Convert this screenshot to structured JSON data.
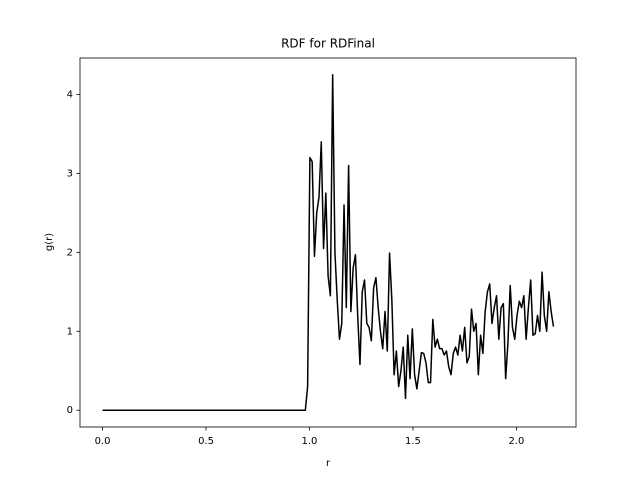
{
  "chart_data": {
    "type": "line",
    "title": "RDF for RDFinal",
    "x_label": "r",
    "y_label": "g(r)",
    "x": [
      0,
      0.98,
      0.991,
      1.002,
      1.013,
      1.024,
      1.035,
      1.046,
      1.057,
      1.068,
      1.079,
      1.09,
      1.101,
      1.112,
      1.123,
      1.134,
      1.145,
      1.156,
      1.167,
      1.178,
      1.189,
      1.2,
      1.211,
      1.222,
      1.233,
      1.244,
      1.255,
      1.266,
      1.277,
      1.288,
      1.299,
      1.31,
      1.321,
      1.332,
      1.343,
      1.354,
      1.365,
      1.376,
      1.387,
      1.398,
      1.409,
      1.42,
      1.431,
      1.442,
      1.453,
      1.464,
      1.475,
      1.486,
      1.497,
      1.508,
      1.519,
      1.53,
      1.541,
      1.552,
      1.563,
      1.574,
      1.585,
      1.596,
      1.607,
      1.618,
      1.629,
      1.64,
      1.651,
      1.662,
      1.673,
      1.684,
      1.695,
      1.706,
      1.717,
      1.728,
      1.739,
      1.75,
      1.761,
      1.772,
      1.783,
      1.794,
      1.805,
      1.816,
      1.827,
      1.838,
      1.849,
      1.86,
      1.871,
      1.882,
      1.893,
      1.904,
      1.915,
      1.926,
      1.937,
      1.948,
      1.959,
      1.97,
      1.981,
      1.992,
      2.003,
      2.014,
      2.025,
      2.036,
      2.047,
      2.058,
      2.069,
      2.08,
      2.091,
      2.102,
      2.113,
      2.124,
      2.135,
      2.146,
      2.157,
      2.168,
      2.179
    ],
    "series": [
      {
        "color": "#000000",
        "values": [
          0,
          0,
          0.3,
          3.2,
          3.15,
          1.95,
          2.5,
          2.7,
          3.4,
          2.05,
          2.75,
          1.7,
          1.45,
          4.25,
          2.0,
          1.4,
          0.9,
          1.1,
          2.6,
          1.3,
          3.1,
          1.25,
          1.8,
          1.97,
          1.2,
          0.58,
          1.5,
          1.65,
          1.1,
          1.05,
          0.88,
          1.55,
          1.68,
          1.3,
          1.0,
          0.78,
          1.25,
          0.75,
          1.99,
          1.4,
          0.45,
          0.75,
          0.3,
          0.5,
          0.8,
          0.15,
          0.95,
          0.4,
          1.03,
          0.45,
          0.27,
          0.5,
          0.73,
          0.72,
          0.6,
          0.35,
          0.35,
          1.15,
          0.8,
          0.9,
          0.78,
          0.78,
          0.7,
          0.75,
          0.55,
          0.45,
          0.72,
          0.8,
          0.7,
          0.95,
          0.75,
          1.05,
          0.6,
          0.68,
          1.28,
          1.0,
          1.1,
          0.45,
          0.95,
          0.72,
          1.25,
          1.5,
          1.6,
          1.1,
          1.3,
          1.45,
          0.9,
          1.3,
          1.35,
          0.4,
          0.85,
          1.58,
          1.05,
          0.9,
          1.2,
          1.38,
          1.3,
          1.45,
          0.9,
          1.3,
          1.65,
          0.95,
          0.97,
          1.2,
          1.0,
          1.75,
          1.2,
          1.0,
          1.5,
          1.25,
          1.06
        ]
      }
    ],
    "xlim": [
      -0.109,
      2.288
    ],
    "ylim": [
      -0.2125,
      4.4625
    ],
    "xticks": [
      {
        "value": 0,
        "label": "0.0"
      },
      {
        "value": 0.5,
        "label": "0.5"
      },
      {
        "value": 1,
        "label": "1.0"
      },
      {
        "value": 1.5,
        "label": "1.5"
      },
      {
        "value": 2,
        "label": "2.0"
      }
    ],
    "yticks": [
      0,
      1,
      2,
      3,
      4
    ]
  }
}
